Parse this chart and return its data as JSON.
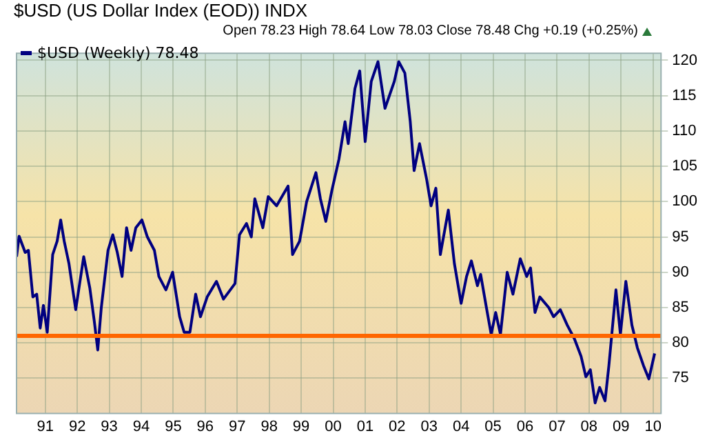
{
  "chart_data": {
    "type": "line",
    "title": "$USD (US Dollar Index (EOD)) INDX",
    "subtitle": "Open 78.23 High 78.64 Low 78.03 Close 78.48 Chg +0.19 (+0.25%)",
    "series": [
      {
        "name": "$USD (Weekly) 78.48",
        "color": "#000080",
        "x": [
          1990.1,
          1990.18,
          1990.37,
          1990.47,
          1990.61,
          1990.73,
          1990.84,
          1990.94,
          1991.06,
          1991.23,
          1991.37,
          1991.48,
          1991.59,
          1991.74,
          1991.95,
          1992.2,
          1992.39,
          1992.53,
          1992.64,
          1992.75,
          1992.96,
          1993.11,
          1993.25,
          1993.4,
          1993.54,
          1993.68,
          1993.83,
          1994.02,
          1994.19,
          1994.41,
          1994.55,
          1994.77,
          1994.98,
          1995.2,
          1995.34,
          1995.52,
          1995.7,
          1995.85,
          1996.06,
          1996.35,
          1996.57,
          1996.93,
          1997.07,
          1997.29,
          1997.44,
          1997.55,
          1997.8,
          1997.97,
          1998.23,
          1998.59,
          1998.73,
          1998.95,
          1999.17,
          1999.46,
          1999.6,
          1999.77,
          1999.96,
          2000.18,
          2000.37,
          2000.47,
          2000.68,
          2000.83,
          2001.0,
          2001.19,
          2001.4,
          2001.62,
          2001.91,
          2002.05,
          2002.24,
          2002.41,
          2002.53,
          2002.7,
          2002.92,
          2003.06,
          2003.21,
          2003.35,
          2003.6,
          2003.79,
          2004.0,
          2004.17,
          2004.32,
          2004.51,
          2004.61,
          2004.79,
          2004.94,
          2005.08,
          2005.23,
          2005.44,
          2005.62,
          2005.85,
          2006.05,
          2006.17,
          2006.31,
          2006.46,
          2006.74,
          2006.89,
          2007.1,
          2007.32,
          2007.54,
          2007.75,
          2007.9,
          2008.04,
          2008.19,
          2008.33,
          2008.5,
          2008.62,
          2008.84,
          2008.98,
          2009.15,
          2009.34,
          2009.51,
          2009.7,
          2009.87,
          2010.05
        ],
        "values": [
          92.2,
          95.1,
          92.8,
          93.1,
          86.5,
          86.9,
          82.1,
          85.3,
          81.5,
          92.5,
          94.4,
          97.4,
          94.4,
          91.2,
          84.7,
          92.2,
          87.8,
          83.1,
          79.0,
          85.0,
          93.1,
          95.3,
          92.8,
          89.4,
          96.3,
          93.1,
          96.3,
          97.4,
          95.0,
          93.1,
          89.4,
          87.5,
          90.0,
          83.7,
          81.5,
          81.5,
          86.9,
          83.7,
          86.5,
          88.7,
          86.2,
          88.4,
          95.3,
          96.9,
          95.0,
          100.4,
          96.3,
          100.7,
          99.4,
          102.2,
          92.5,
          94.4,
          100.0,
          104.1,
          100.4,
          97.2,
          101.6,
          106.0,
          111.3,
          108.2,
          116.0,
          118.5,
          108.5,
          117.0,
          119.8,
          113.2,
          117.0,
          119.8,
          118.2,
          111.3,
          104.4,
          108.2,
          103.2,
          99.4,
          101.9,
          92.5,
          98.8,
          91.2,
          85.6,
          89.4,
          91.6,
          88.1,
          89.7,
          85.0,
          81.2,
          84.3,
          81.2,
          90.0,
          86.9,
          91.9,
          89.4,
          90.6,
          84.3,
          86.5,
          85.0,
          83.7,
          84.7,
          82.5,
          80.6,
          78.1,
          75.2,
          76.2,
          71.5,
          73.7,
          71.8,
          76.8,
          87.5,
          81.2,
          88.7,
          82.5,
          79.3,
          76.8,
          74.9,
          78.5
        ]
      }
    ],
    "xlim": [
      1990.1,
      2010.25
    ],
    "xticks": [
      {
        "value": 1991,
        "label": "91"
      },
      {
        "value": 1992,
        "label": "92"
      },
      {
        "value": 1993,
        "label": "93"
      },
      {
        "value": 1994,
        "label": "94"
      },
      {
        "value": 1995,
        "label": "95"
      },
      {
        "value": 1996,
        "label": "96"
      },
      {
        "value": 1997,
        "label": "97"
      },
      {
        "value": 1998,
        "label": "98"
      },
      {
        "value": 1999,
        "label": "99"
      },
      {
        "value": 2000,
        "label": "00"
      },
      {
        "value": 2001,
        "label": "01"
      },
      {
        "value": 2002,
        "label": "02"
      },
      {
        "value": 2003,
        "label": "03"
      },
      {
        "value": 2004,
        "label": "04"
      },
      {
        "value": 2005,
        "label": "05"
      },
      {
        "value": 2006,
        "label": "06"
      },
      {
        "value": 2007,
        "label": "07"
      },
      {
        "value": 2008,
        "label": "08"
      },
      {
        "value": 2009,
        "label": "09"
      },
      {
        "value": 2010,
        "label": "10"
      }
    ],
    "ylim": [
      70,
      121
    ],
    "yticks": [
      75,
      80,
      85,
      90,
      95,
      100,
      105,
      110,
      115,
      120
    ],
    "ref_lines": [
      {
        "axis": "y",
        "value": 81,
        "color": "#ff6600"
      }
    ],
    "grid": true,
    "legend": "top left",
    "marker": "none",
    "line_style": "solid"
  }
}
